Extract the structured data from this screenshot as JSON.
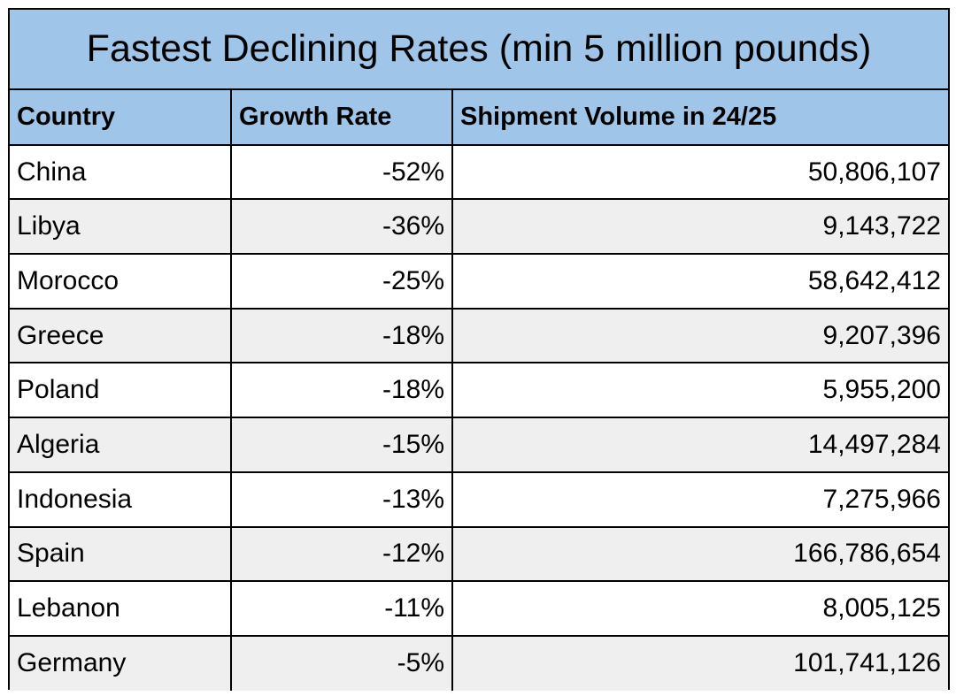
{
  "chart_data": {
    "type": "table",
    "title": "Fastest Declining Rates (min 5 million pounds)",
    "columns": [
      "Country",
      "Growth Rate",
      "Shipment Volume in 24/25"
    ],
    "rows": [
      {
        "country": "China",
        "growth_rate": "-52%",
        "shipment_volume": "50,806,107"
      },
      {
        "country": "Libya",
        "growth_rate": "-36%",
        "shipment_volume": "9,143,722"
      },
      {
        "country": "Morocco",
        "growth_rate": "-25%",
        "shipment_volume": "58,642,412"
      },
      {
        "country": "Greece",
        "growth_rate": "-18%",
        "shipment_volume": "9,207,396"
      },
      {
        "country": "Poland",
        "growth_rate": "-18%",
        "shipment_volume": "5,955,200"
      },
      {
        "country": "Algeria",
        "growth_rate": "-15%",
        "shipment_volume": "14,497,284"
      },
      {
        "country": "Indonesia",
        "growth_rate": "-13%",
        "shipment_volume": "7,275,966"
      },
      {
        "country": "Spain",
        "growth_rate": "-12%",
        "shipment_volume": "166,786,654"
      },
      {
        "country": "Lebanon",
        "growth_rate": "-11%",
        "shipment_volume": "8,005,125"
      },
      {
        "country": "Germany",
        "growth_rate": "-5%",
        "shipment_volume": "101,741,126"
      }
    ]
  },
  "colors": {
    "header_fill": "#9fc5e8",
    "row_alt_fill": "#efefef",
    "border": "#000000"
  }
}
